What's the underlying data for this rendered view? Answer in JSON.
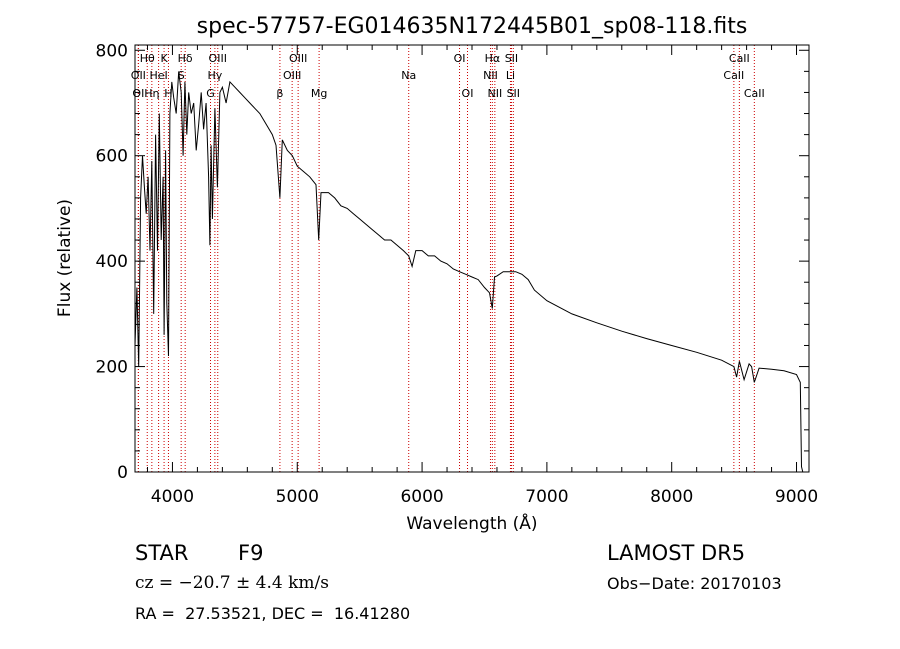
{
  "chart_data": {
    "type": "line",
    "title": "spec-57757-EG014635N172445B01_sp08-118.fits",
    "xlabel": "Wavelength (Å)",
    "ylabel": "Flux (relative)",
    "xlim": [
      3700,
      9100
    ],
    "ylim": [
      0,
      810
    ],
    "x_ticks": [
      4000,
      5000,
      6000,
      7000,
      8000,
      9000
    ],
    "y_ticks": [
      0,
      200,
      400,
      600,
      800
    ],
    "grid": false,
    "line_color": "#000000",
    "marker_color": "#cc0000",
    "series": [
      {
        "x": [
          3700,
          3715,
          3730,
          3745,
          3760,
          3775,
          3790,
          3805,
          3820,
          3835,
          3850,
          3865,
          3880,
          3895,
          3910,
          3925,
          3933,
          3945,
          3955,
          3968,
          3980,
          3995,
          4010,
          4030,
          4050,
          4070,
          4085,
          4100,
          4115,
          4130,
          4150,
          4170,
          4190,
          4210,
          4230,
          4250,
          4270,
          4290,
          4300,
          4310,
          4320,
          4340,
          4360,
          4380,
          4400,
          4430,
          4460,
          4500,
          4540,
          4580,
          4620,
          4660,
          4700,
          4750,
          4800,
          4830,
          4861,
          4880,
          4920,
          4960,
          5000,
          5050,
          5100,
          5150,
          5172,
          5190,
          5250,
          5300,
          5350,
          5400,
          5450,
          5500,
          5550,
          5600,
          5650,
          5700,
          5750,
          5800,
          5850,
          5893,
          5920,
          5950,
          6000,
          6050,
          6100,
          6150,
          6200,
          6250,
          6300,
          6350,
          6400,
          6450,
          6500,
          6540,
          6563,
          6580,
          6600,
          6650,
          6700,
          6750,
          6800,
          6850,
          6900,
          7000,
          7200,
          7400,
          7600,
          7800,
          8000,
          8200,
          8400,
          8498,
          8520,
          8542,
          8580,
          8620,
          8640,
          8662,
          8700,
          8800,
          8900,
          9000,
          9030,
          9040,
          9050
        ],
        "y": [
          240,
          350,
          200,
          520,
          600,
          540,
          490,
          560,
          420,
          590,
          300,
          640,
          420,
          680,
          440,
          560,
          260,
          610,
          320,
          220,
          680,
          740,
          710,
          680,
          760,
          720,
          600,
          740,
          640,
          720,
          680,
          700,
          610,
          660,
          720,
          650,
          700,
          560,
          430,
          620,
          480,
          690,
          540,
          720,
          730,
          700,
          740,
          730,
          720,
          710,
          700,
          690,
          680,
          660,
          640,
          620,
          520,
          630,
          610,
          600,
          580,
          570,
          560,
          545,
          440,
          530,
          530,
          520,
          505,
          500,
          490,
          480,
          470,
          460,
          450,
          440,
          440,
          430,
          420,
          410,
          390,
          420,
          420,
          410,
          410,
          400,
          395,
          385,
          380,
          375,
          370,
          365,
          350,
          340,
          310,
          370,
          372,
          380,
          380,
          380,
          375,
          365,
          345,
          325,
          300,
          283,
          267,
          253,
          240,
          227,
          212,
          200,
          180,
          210,
          175,
          205,
          200,
          170,
          197,
          195,
          192,
          185,
          170,
          10,
          0
        ]
      }
    ],
    "line_markers": [
      {
        "label": "Hθ",
        "x": 3798,
        "row": 1
      },
      {
        "label": "K",
        "x": 3933,
        "row": 1
      },
      {
        "label": "Hδ",
        "x": 4102,
        "row": 1
      },
      {
        "label": "OIII",
        "x": 4363,
        "row": 1
      },
      {
        "label": "OIII",
        "x": 5007,
        "row": 1
      },
      {
        "label": "OI",
        "x": 6300,
        "row": 1
      },
      {
        "label": "Hα",
        "x": 6563,
        "row": 1
      },
      {
        "label": "SII",
        "x": 6716,
        "row": 1
      },
      {
        "label": "CaII",
        "x": 8542,
        "row": 1
      },
      {
        "label": "OII",
        "x": 3727,
        "row": 2
      },
      {
        "label": "HeI",
        "x": 3889,
        "row": 2
      },
      {
        "label": "S",
        "x": 4070,
        "row": 2
      },
      {
        "label": "Hγ",
        "x": 4340,
        "row": 2
      },
      {
        "label": "OIII",
        "x": 4959,
        "row": 2
      },
      {
        "label": "Na",
        "x": 5893,
        "row": 2
      },
      {
        "label": "NII",
        "x": 6548,
        "row": 2
      },
      {
        "label": "Li",
        "x": 6708,
        "row": 2
      },
      {
        "label": "CaII",
        "x": 8498,
        "row": 2
      },
      {
        "label": "OI",
        "x": 3727,
        "row": 3
      },
      {
        "label": "Hη",
        "x": 3835,
        "row": 3
      },
      {
        "label": "H",
        "x": 3968,
        "row": 3
      },
      {
        "label": "G",
        "x": 4305,
        "row": 3
      },
      {
        "label": "β",
        "x": 4861,
        "row": 3
      },
      {
        "label": "Mg",
        "x": 5175,
        "row": 3
      },
      {
        "label": "OI",
        "x": 6364,
        "row": 3
      },
      {
        "label": "NII",
        "x": 6583,
        "row": 3
      },
      {
        "label": "SII",
        "x": 6731,
        "row": 3
      },
      {
        "label": "CaII",
        "x": 8662,
        "row": 3
      }
    ]
  },
  "info": {
    "object_type": "STAR",
    "subclass": "F9",
    "survey": "LAMOST DR5",
    "redshift": "cz = −20.7 ± 4.4 km/s",
    "obs_date": "Obs−Date: 20170103",
    "coords": "RA =  27.53521, DEC =  16.41280"
  }
}
